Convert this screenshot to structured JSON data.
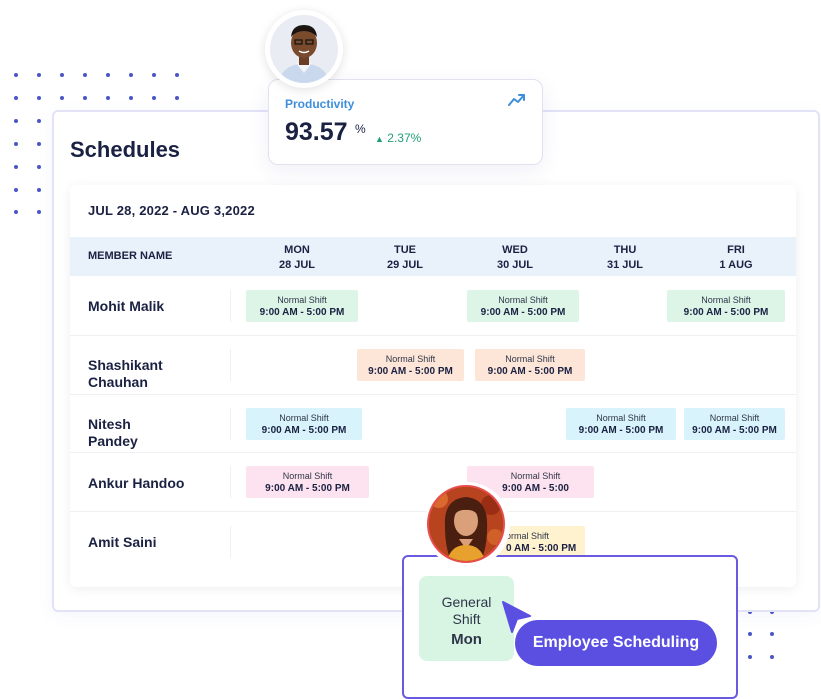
{
  "main": {
    "title": "Schedules",
    "date_range": "JUL 28, 2022 - AUG 3,2022"
  },
  "table": {
    "member_header": "MEMBER NAME",
    "days": [
      {
        "day": "MON",
        "date": "28 JUL"
      },
      {
        "day": "TUE",
        "date": "29 JUL"
      },
      {
        "day": "WED",
        "date": "30 JUL"
      },
      {
        "day": "THU",
        "date": "31 JUL"
      },
      {
        "day": "FRI",
        "date": "1 AUG"
      }
    ],
    "members": [
      {
        "name": "Mohit Malik"
      },
      {
        "name": "Shashikant Chauhan"
      },
      {
        "name": "Nitesh Pandey"
      },
      {
        "name": "Ankur Handoo"
      },
      {
        "name": "Amit Saini"
      }
    ],
    "shift_label": "Normal Shift",
    "shift_time": "9:00 AM - 5:00 PM",
    "shift_time_partial": "9:00 AM - 5:00",
    "shift_label_partial": "ormal Shift",
    "shift_time_partial2": "0 AM - 5:00 PM"
  },
  "productivity": {
    "label": "Productivity",
    "value": "93.57",
    "unit": "%",
    "change": "2.37%"
  },
  "popup": {
    "shift_name": "General Shift",
    "shift_day": "Mon",
    "button_label": "Employee Scheduling"
  },
  "colors": {
    "accent": "#5b4fe2",
    "productivity_label": "#3d8fdc",
    "positive": "#1f9f78",
    "shift_green": "#dcf5e7",
    "shift_peach": "#fde6d8",
    "shift_cyan": "#d8f3fb",
    "shift_pink": "#fde3f0",
    "shift_yellow": "#fff2cf"
  },
  "icons": [
    "trend-up-icon",
    "up-triangle-icon",
    "cursor-arrow-icon",
    "avatar-man",
    "avatar-woman"
  ]
}
